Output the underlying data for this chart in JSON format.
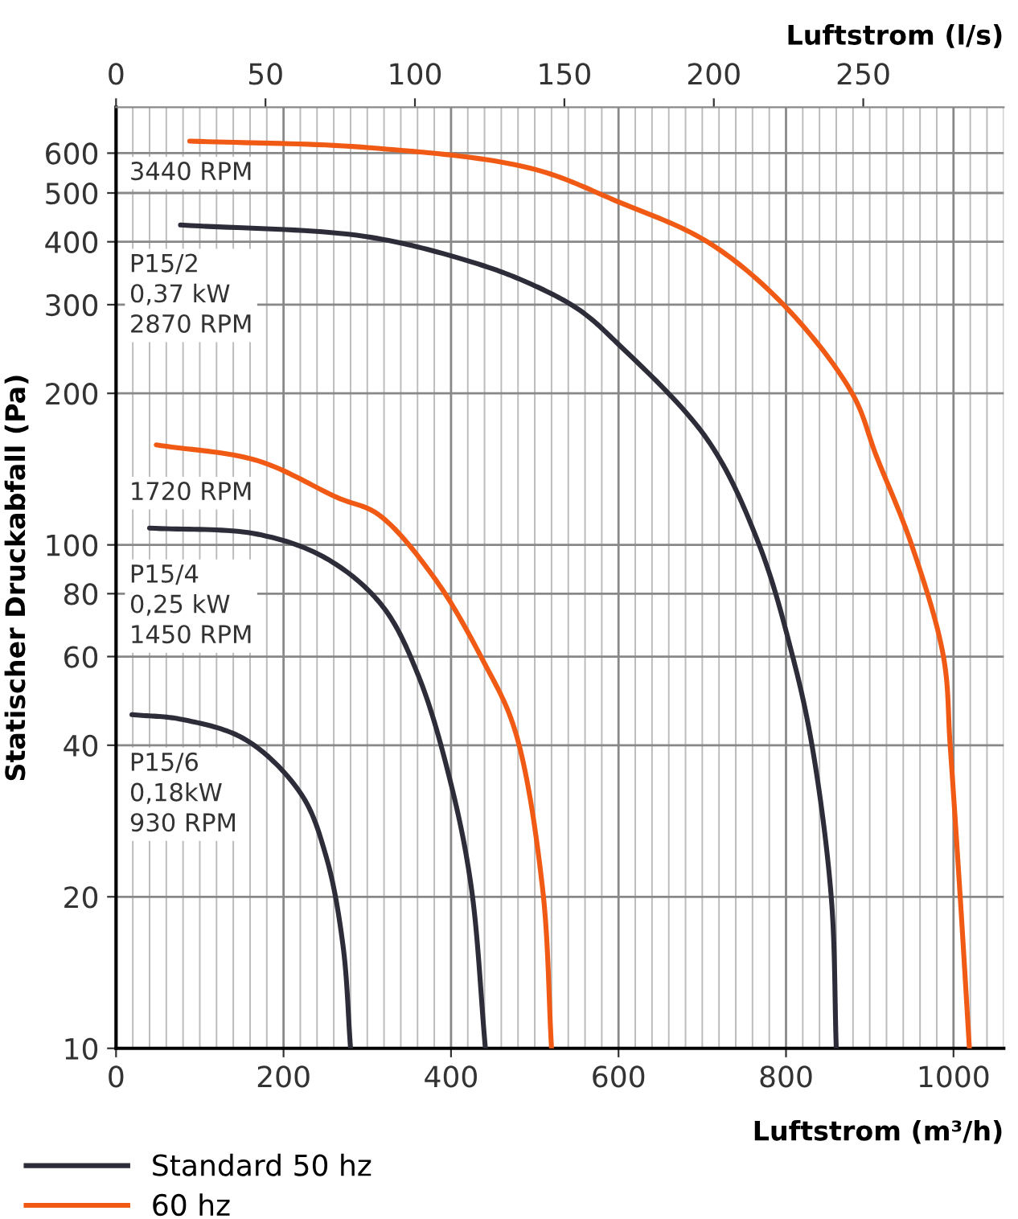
{
  "chart_data": {
    "type": "line",
    "xlabel": "Luftstrom (m³/h)",
    "x2label": "Luftstrom (l/s)",
    "ylabel": "Statischer Druckabfall (Pa)",
    "log": "y",
    "grid": true,
    "legend": "bottom left",
    "marker": "none",
    "line_style": "solid",
    "xlim": [
      0,
      1060
    ],
    "xticks": [
      0,
      200,
      400,
      600,
      800,
      1000
    ],
    "x2lim": [
      0,
      297
    ],
    "x2ticks": [
      0,
      50,
      100,
      150,
      200,
      250
    ],
    "ylim": [
      10,
      740
    ],
    "yticks": [
      10,
      20,
      40,
      60,
      80,
      100,
      200,
      300,
      400,
      500,
      600
    ],
    "series": [
      {
        "name": "Standard 50 hz",
        "color": "#2d2d3a",
        "x": [
          77,
          297,
          424,
          495,
          553,
          597,
          706,
          768,
          808,
          831,
          854,
          860
        ],
        "values": [
          432,
          410,
          365,
          330,
          293,
          253,
          162,
          100,
          60,
          40,
          20,
          10
        ]
      },
      {
        "name": "60 hz",
        "color": "#f05a14",
        "x": [
          88,
          303,
          495,
          600,
          706,
          797,
          879,
          908,
          950,
          988,
          996,
          1008,
          1019
        ],
        "values": [
          634,
          615,
          560,
          480,
          400,
          300,
          200,
          150,
          100,
          60,
          40,
          20,
          10
        ]
      },
      {
        "color": "#f05a14",
        "x": [
          48,
          169,
          265,
          313,
          380,
          438,
          476,
          509,
          520
        ],
        "values": [
          158,
          147,
          124,
          115,
          86,
          59,
          43,
          21,
          10
        ]
      },
      {
        "color": "#2d2d3a",
        "x": [
          40,
          169,
          251,
          317,
          361,
          399,
          424,
          441
        ],
        "values": [
          108,
          105,
          94,
          76,
          55,
          34,
          21,
          10
        ]
      },
      {
        "color": "#2d2d3a",
        "x": [
          19,
          79,
          155,
          221,
          251,
          271,
          280
        ],
        "values": [
          46,
          45,
          41,
          32,
          24,
          16,
          10
        ]
      }
    ],
    "annotations": [
      "3440 RPM",
      "P15/2\n0,37 kW\n2870 RPM",
      "1720 RPM",
      "P15/4\n0,25 kW\n1450 RPM",
      "P15/6\n0,18kW\n930 RPM"
    ]
  }
}
